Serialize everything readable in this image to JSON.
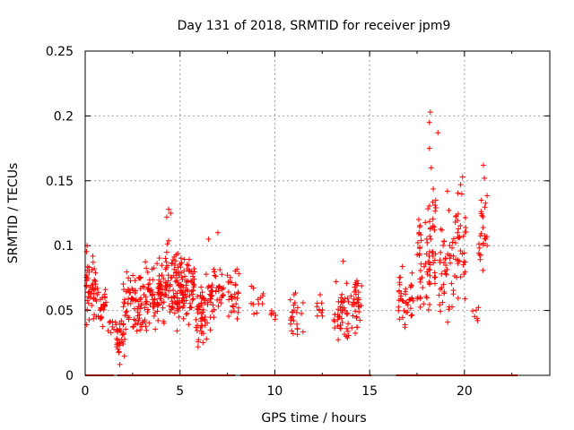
{
  "chart_data": {
    "type": "scatter",
    "title": "Day 131 of 2018, SRMTID for receiver jpm9",
    "xlabel": "GPS time / hours",
    "ylabel": "SRMTID / TECUs",
    "xlim": [
      0,
      24.5
    ],
    "ylim": [
      0,
      0.25
    ],
    "xticks": [
      {
        "value": 0,
        "label": "0"
      },
      {
        "value": 5,
        "label": "5"
      },
      {
        "value": 10,
        "label": "10"
      },
      {
        "value": 15,
        "label": "15"
      },
      {
        "value": 20,
        "label": "20"
      }
    ],
    "yticks": [
      {
        "value": 0,
        "label": "0"
      },
      {
        "value": 0.05,
        "label": "0.05"
      },
      {
        "value": 0.1,
        "label": "0.1"
      },
      {
        "value": 0.15,
        "label": "0.15"
      },
      {
        "value": 0.2,
        "label": "0.2"
      },
      {
        "value": 0.25,
        "label": "0.25"
      }
    ],
    "grid": true,
    "marker": "+",
    "color": "#ff0000",
    "zero_segments": [
      [
        0.0,
        1.5
      ],
      [
        1.7,
        7.9
      ],
      [
        8.2,
        15.1
      ],
      [
        16.4,
        22.8
      ]
    ],
    "clusters": [
      {
        "xmin": 0.05,
        "xmax": 0.55,
        "ymin": 0.035,
        "ymax": 0.1,
        "n": 45
      },
      {
        "xmin": 0.55,
        "xmax": 1.1,
        "ymin": 0.03,
        "ymax": 0.075,
        "n": 30
      },
      {
        "xmin": 1.2,
        "xmax": 1.6,
        "ymin": 0.03,
        "ymax": 0.045,
        "n": 8
      },
      {
        "xmin": 1.6,
        "xmax": 2.1,
        "ymin": 0.007,
        "ymax": 0.05,
        "n": 30
      },
      {
        "xmin": 2.0,
        "xmax": 3.0,
        "ymin": 0.025,
        "ymax": 0.085,
        "n": 70
      },
      {
        "xmin": 3.0,
        "xmax": 4.0,
        "ymin": 0.03,
        "ymax": 0.095,
        "n": 80
      },
      {
        "xmin": 4.0,
        "xmax": 4.9,
        "ymin": 0.03,
        "ymax": 0.11,
        "n": 80
      },
      {
        "xmin": 4.9,
        "xmax": 5.8,
        "ymin": 0.035,
        "ymax": 0.095,
        "n": 80
      },
      {
        "xmin": 5.8,
        "xmax": 6.6,
        "ymin": 0.02,
        "ymax": 0.08,
        "n": 55
      },
      {
        "xmin": 6.6,
        "xmax": 7.3,
        "ymin": 0.04,
        "ymax": 0.092,
        "n": 40
      },
      {
        "xmin": 7.5,
        "xmax": 8.1,
        "ymin": 0.035,
        "ymax": 0.088,
        "n": 30
      },
      {
        "xmin": 8.7,
        "xmax": 9.4,
        "ymin": 0.045,
        "ymax": 0.07,
        "n": 12
      },
      {
        "xmin": 9.8,
        "xmax": 10.2,
        "ymin": 0.04,
        "ymax": 0.055,
        "n": 6
      },
      {
        "xmin": 10.8,
        "xmax": 11.5,
        "ymin": 0.025,
        "ymax": 0.07,
        "n": 25
      },
      {
        "xmin": 12.2,
        "xmax": 12.6,
        "ymin": 0.035,
        "ymax": 0.065,
        "n": 10
      },
      {
        "xmin": 13.1,
        "xmax": 13.9,
        "ymin": 0.022,
        "ymax": 0.075,
        "n": 45
      },
      {
        "xmin": 14.0,
        "xmax": 14.6,
        "ymin": 0.03,
        "ymax": 0.075,
        "n": 35
      },
      {
        "xmin": 16.5,
        "xmax": 17.3,
        "ymin": 0.03,
        "ymax": 0.085,
        "n": 40
      },
      {
        "xmin": 17.5,
        "xmax": 18.2,
        "ymin": 0.045,
        "ymax": 0.13,
        "n": 45
      },
      {
        "xmin": 18.0,
        "xmax": 18.5,
        "ymin": 0.065,
        "ymax": 0.15,
        "n": 30
      },
      {
        "xmin": 18.6,
        "xmax": 19.5,
        "ymin": 0.04,
        "ymax": 0.13,
        "n": 45
      },
      {
        "xmin": 19.5,
        "xmax": 20.1,
        "ymin": 0.04,
        "ymax": 0.15,
        "n": 35
      },
      {
        "xmin": 20.4,
        "xmax": 20.8,
        "ymin": 0.035,
        "ymax": 0.055,
        "n": 6
      },
      {
        "xmin": 20.7,
        "xmax": 21.2,
        "ymin": 0.075,
        "ymax": 0.15,
        "n": 25
      }
    ],
    "extra_points": [
      [
        0.1,
        0.1
      ],
      [
        4.4,
        0.128
      ],
      [
        4.5,
        0.125
      ],
      [
        4.3,
        0.122
      ],
      [
        6.5,
        0.105
      ],
      [
        7.0,
        0.11
      ],
      [
        13.6,
        0.088
      ],
      [
        18.2,
        0.203
      ],
      [
        18.15,
        0.195
      ],
      [
        18.15,
        0.175
      ],
      [
        18.25,
        0.16
      ],
      [
        18.6,
        0.187
      ],
      [
        21.0,
        0.162
      ],
      [
        21.05,
        0.152
      ],
      [
        19.9,
        0.153
      ],
      [
        19.8,
        0.147
      ],
      [
        19.1,
        0.142
      ]
    ]
  }
}
